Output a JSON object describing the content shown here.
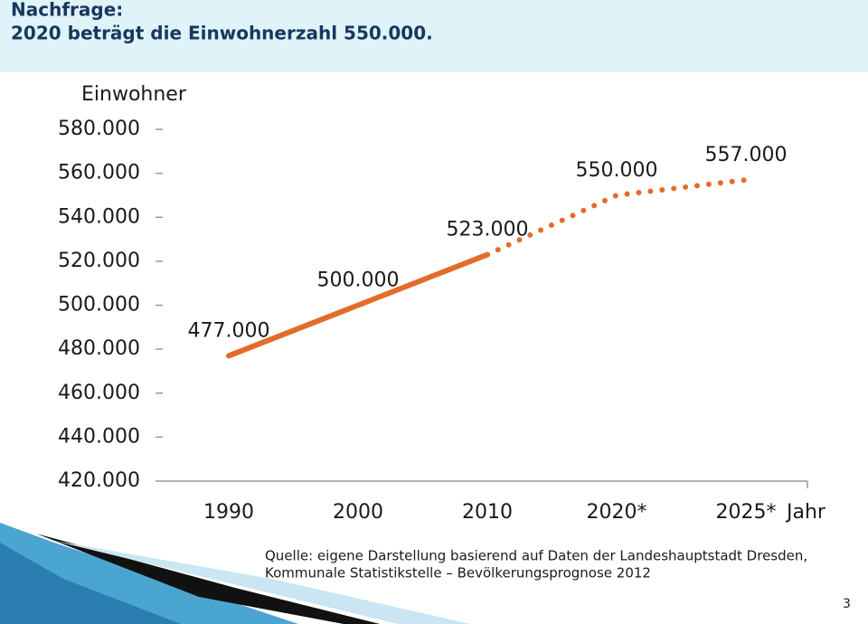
{
  "header": {
    "title": "Nachfrage:",
    "subtitle": "2020 beträgt die Einwohnerzahl 550.000."
  },
  "chart_data": {
    "type": "line",
    "ylabel": "Einwohner",
    "xlabel": "Jahr",
    "categories": [
      "1990",
      "2000",
      "2010",
      "2020*",
      "2025*"
    ],
    "series": [
      {
        "color": "#e46c2a",
        "style": "solid",
        "values": [
          477000,
          500000,
          523000,
          null,
          null
        ],
        "value_labels": [
          "477.000",
          "500.000",
          "523.000",
          null,
          null
        ]
      },
      {
        "color": "#e46c2a",
        "style": "dotted",
        "values": [
          null,
          null,
          523000,
          550000,
          557000
        ],
        "value_labels": [
          null,
          null,
          null,
          "550.000",
          "557.000"
        ]
      }
    ],
    "ylim": [
      420000,
      580000
    ],
    "yticks": [
      {
        "value": 420000,
        "label": "420.000"
      },
      {
        "value": 440000,
        "label": "440.000"
      },
      {
        "value": 460000,
        "label": "460.000"
      },
      {
        "value": 480000,
        "label": "480.000"
      },
      {
        "value": 500000,
        "label": "500.000"
      },
      {
        "value": 520000,
        "label": "520.000"
      },
      {
        "value": 540000,
        "label": "540.000"
      },
      {
        "value": 560000,
        "label": "560.000"
      },
      {
        "value": 580000,
        "label": "580.000"
      }
    ]
  },
  "source": [
    "Quelle: eigene Darstellung basierend auf Daten der Landeshauptstadt Dresden,",
    "Kommunale Statistikstelle – Bevölkerungsprognose 2012"
  ],
  "page_number": "3"
}
